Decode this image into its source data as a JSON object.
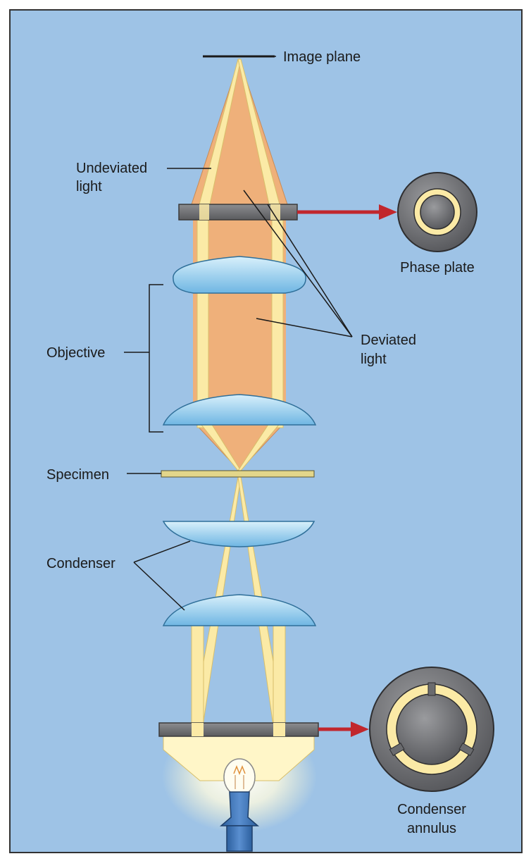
{
  "labels": {
    "image_plane": "Image plane",
    "undeviated_1": "Undeviated",
    "undeviated_2": "light",
    "phase_plate": "Phase plate",
    "objective": "Objective",
    "deviated_1": "Deviated",
    "deviated_2": "light",
    "specimen": "Specimen",
    "condenser": "Condenser",
    "annulus_1": "Condenser",
    "annulus_2": "annulus"
  },
  "colors": {
    "background": "#9ec3e6",
    "deviated_light": "#efb07a",
    "undeviated_light": "#fbeaa6",
    "lens": "#a8d6f2",
    "plate": "#6d6e71",
    "arrow": "#c1272d",
    "specimen": "#e3d68a"
  }
}
